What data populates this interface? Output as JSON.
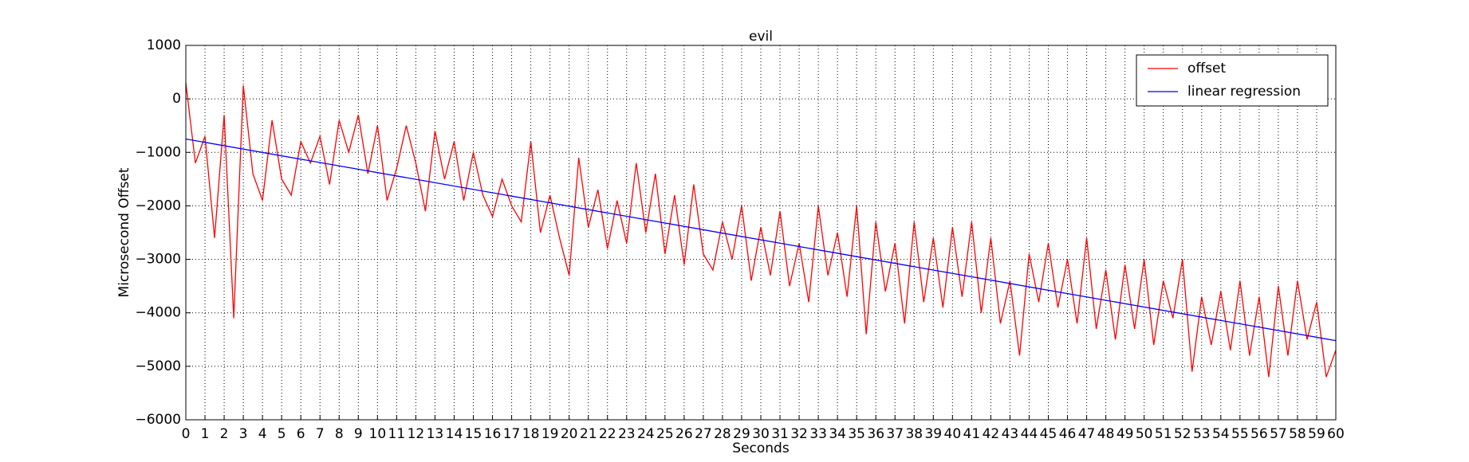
{
  "chart_data": {
    "type": "line",
    "title": "evil",
    "x_label": "Seconds",
    "y_label": "Microsecond Offset",
    "x": [
      0,
      0.5,
      1,
      1.5,
      2,
      2.5,
      3,
      3.5,
      4,
      4.5,
      5,
      5.5,
      6,
      6.5,
      7,
      7.5,
      8,
      8.5,
      9,
      9.5,
      10,
      10.5,
      11,
      11.5,
      12,
      12.5,
      13,
      13.5,
      14,
      14.5,
      15,
      15.5,
      16,
      16.5,
      17,
      17.5,
      18,
      18.5,
      19,
      19.5,
      20,
      20.5,
      21,
      21.5,
      22,
      22.5,
      23,
      23.5,
      24,
      24.5,
      25,
      25.5,
      26,
      26.5,
      27,
      27.5,
      28,
      28.5,
      29,
      29.5,
      30,
      30.5,
      31,
      31.5,
      32,
      32.5,
      33,
      33.5,
      34,
      34.5,
      35,
      35.5,
      36,
      36.5,
      37,
      37.5,
      38,
      38.5,
      39,
      39.5,
      40,
      40.5,
      41,
      41.5,
      42,
      42.5,
      43,
      43.5,
      44,
      44.5,
      45,
      45.5,
      46,
      46.5,
      47,
      47.5,
      48,
      48.5,
      49,
      49.5,
      50,
      50.5,
      51,
      51.5,
      52,
      52.5,
      53,
      53.5,
      54,
      54.5,
      55,
      55.5,
      56,
      56.5,
      57,
      57.5,
      58,
      58.5,
      59,
      59.5,
      60
    ],
    "series": [
      {
        "name": "offset",
        "color": "#ff0000",
        "values": [
          300,
          -1200,
          -700,
          -2600,
          -300,
          -4100,
          250,
          -1400,
          -1900,
          -400,
          -1500,
          -1800,
          -800,
          -1200,
          -700,
          -1600,
          -400,
          -1000,
          -300,
          -1400,
          -500,
          -1900,
          -1300,
          -500,
          -1200,
          -2100,
          -600,
          -1500,
          -800,
          -1900,
          -1000,
          -1800,
          -2200,
          -1500,
          -2000,
          -2300,
          -800,
          -2500,
          -1800,
          -2600,
          -3300,
          -1100,
          -2400,
          -1700,
          -2800,
          -1900,
          -2700,
          -1200,
          -2500,
          -1400,
          -2900,
          -1800,
          -3100,
          -1600,
          -2900,
          -3200,
          -2300,
          -3000,
          -2000,
          -3400,
          -2400,
          -3300,
          -2100,
          -3500,
          -2700,
          -3800,
          -2000,
          -3300,
          -2500,
          -3700,
          -2000,
          -4400,
          -2300,
          -3600,
          -2700,
          -4200,
          -2300,
          -3800,
          -2600,
          -3900,
          -2400,
          -3700,
          -2300,
          -4000,
          -2600,
          -4200,
          -3400,
          -4800,
          -2900,
          -3800,
          -2700,
          -3900,
          -3000,
          -4200,
          -2600,
          -4300,
          -3200,
          -4500,
          -3100,
          -4300,
          -3000,
          -4600,
          -3400,
          -4100,
          -3000,
          -5100,
          -3700,
          -4600,
          -3600,
          -4700,
          -3400,
          -4800,
          -3700,
          -5200,
          -3500,
          -4800,
          -3400,
          -4500,
          -3800,
          -5200,
          -4700
        ]
      },
      {
        "name": "linear regression",
        "color": "#0000ff",
        "x": [
          0,
          60
        ],
        "values": [
          -750,
          -4520
        ]
      }
    ],
    "xlim": [
      0,
      60
    ],
    "xticks": [
      0,
      1,
      2,
      3,
      4,
      5,
      6,
      7,
      8,
      9,
      10,
      11,
      12,
      13,
      14,
      15,
      16,
      17,
      18,
      19,
      20,
      21,
      22,
      23,
      24,
      25,
      26,
      27,
      28,
      29,
      30,
      31,
      32,
      33,
      34,
      35,
      36,
      37,
      38,
      39,
      40,
      41,
      42,
      43,
      44,
      45,
      46,
      47,
      48,
      49,
      50,
      51,
      52,
      53,
      54,
      55,
      56,
      57,
      58,
      59,
      60
    ],
    "ylim": [
      -6000,
      1000
    ],
    "yticks": [
      {
        "value": -6000,
        "label": "−6000"
      },
      {
        "value": -5000,
        "label": "−5000"
      },
      {
        "value": -4000,
        "label": "−4000"
      },
      {
        "value": -3000,
        "label": "−3000"
      },
      {
        "value": -2000,
        "label": "−2000"
      },
      {
        "value": -1000,
        "label": "−1000"
      },
      0,
      1000
    ],
    "grid": true,
    "legend": "upper right"
  }
}
